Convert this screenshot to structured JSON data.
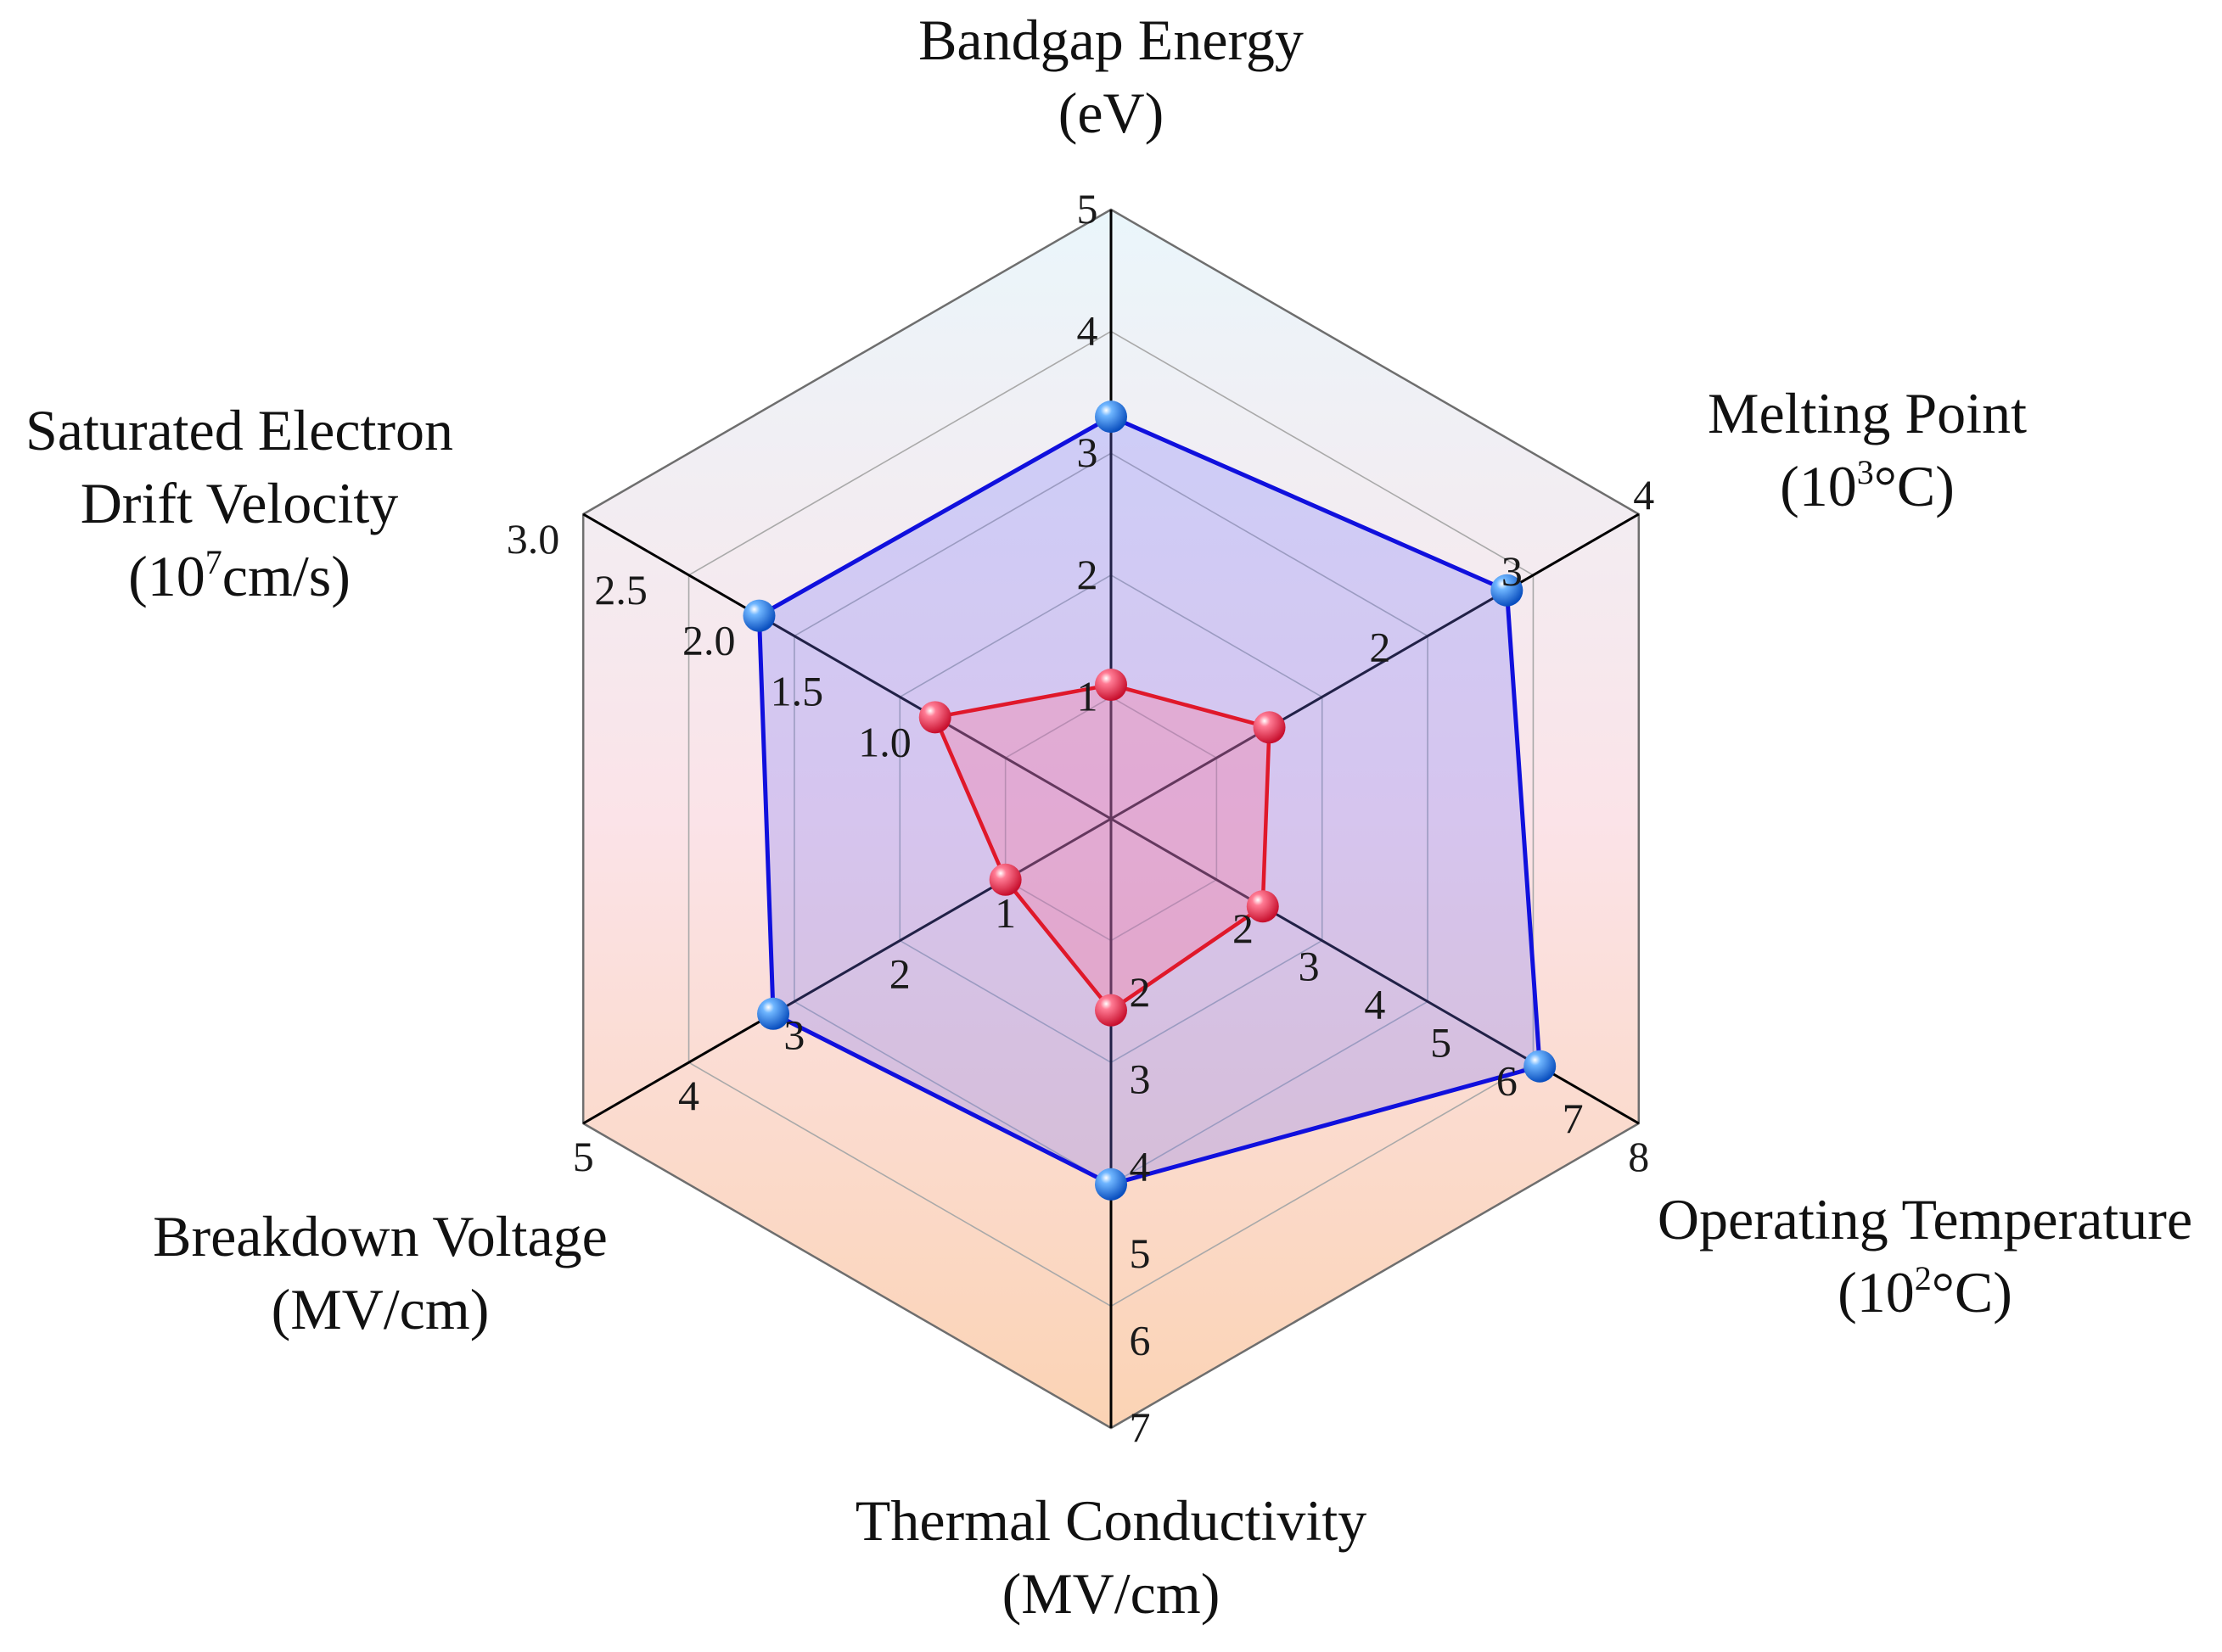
{
  "chart_data": {
    "type": "radar",
    "axes": [
      {
        "title_lines": [
          "Bandgap Energy",
          "(eV)"
        ],
        "ticks": [
          "1",
          "2",
          "3",
          "4",
          "5"
        ],
        "tick_values": [
          1,
          2,
          3,
          4,
          5
        ],
        "max": 5
      },
      {
        "title_lines": [
          "Melting Point",
          "(10³°C)"
        ],
        "title_sup": {
          "base": "(10",
          "exp": "3",
          "rest": "°C)"
        },
        "ticks": [
          "2",
          "3",
          "4"
        ],
        "tick_values": [
          2,
          3,
          4
        ],
        "max": 4
      },
      {
        "title_lines": [
          "Operating Temperature",
          "(10²°C)"
        ],
        "title_sup": {
          "base": "(10",
          "exp": "2",
          "rest": "°C)"
        },
        "ticks": [
          "2",
          "3",
          "4",
          "5",
          "6",
          "7",
          "8"
        ],
        "tick_values": [
          2,
          3,
          4,
          5,
          6,
          7,
          8
        ],
        "max": 8
      },
      {
        "title_lines": [
          "Thermal Conductivity",
          "(MV/cm)"
        ],
        "ticks": [
          "2",
          "3",
          "4",
          "5",
          "6",
          "7"
        ],
        "tick_values": [
          2,
          3,
          4,
          5,
          6,
          7
        ],
        "max": 7
      },
      {
        "title_lines": [
          "Breakdown Voltage",
          "(MV/cm)"
        ],
        "ticks": [
          "1",
          "2",
          "3",
          "4",
          "5"
        ],
        "tick_values": [
          1,
          2,
          3,
          4,
          5
        ],
        "max": 5
      },
      {
        "title_lines": [
          "Saturated Electron",
          "Drift Velocity",
          "(10⁷cm/s)"
        ],
        "title_sup": {
          "base": "(10",
          "exp": "7",
          "rest": "cm/s)"
        },
        "ticks": [
          "1.0",
          "1.5",
          "2.0",
          "2.5",
          "3.0"
        ],
        "tick_values": [
          1.0,
          1.5,
          2.0,
          2.5,
          3.0
        ],
        "max": 3.0
      }
    ],
    "series": [
      {
        "values": [
          3.3,
          3.0,
          6.5,
          4.2,
          3.2,
          2.0
        ],
        "color": "#1010dd",
        "marker_color": "#1f7fe6"
      },
      {
        "values": [
          1.1,
          1.2,
          2.3,
          2.2,
          1.0,
          1.0
        ],
        "color": "#e0182a",
        "marker_color": "#ff3a5c"
      }
    ],
    "rings": 5,
    "background_gradient": [
      "#eaf6fb",
      "#fbe3e8",
      "#fbd3b4"
    ],
    "grid": true
  }
}
